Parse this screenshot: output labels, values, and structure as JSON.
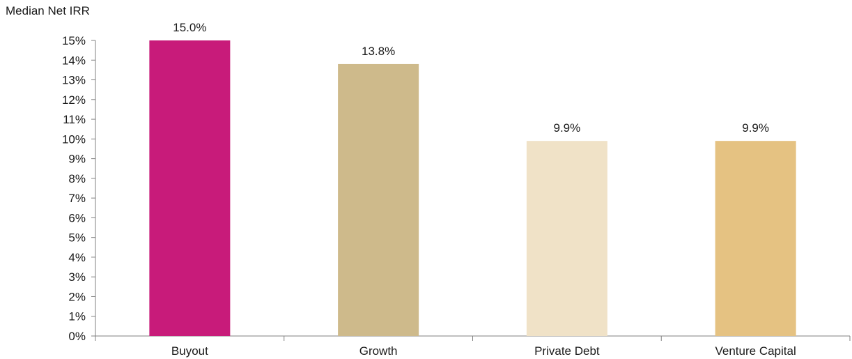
{
  "chart_data": {
    "type": "bar",
    "title": "",
    "xlabel": "",
    "ylabel": "Median Net IRR",
    "categories": [
      "Buyout",
      "Growth",
      "Private Debt",
      "Venture Capital"
    ],
    "values": [
      15.0,
      13.8,
      9.9,
      9.9
    ],
    "value_labels": [
      "15.0%",
      "13.8%",
      "9.9%",
      "9.9%"
    ],
    "bar_colors": [
      "#c81b7a",
      "#ceba8b",
      "#f0e2c7",
      "#e5c282"
    ],
    "ylim": [
      0,
      15
    ],
    "yticks": [
      0,
      1,
      2,
      3,
      4,
      5,
      6,
      7,
      8,
      9,
      10,
      11,
      12,
      13,
      14,
      15
    ],
    "ytick_labels": [
      "0%",
      "1%",
      "2%",
      "3%",
      "4%",
      "5%",
      "6%",
      "7%",
      "8%",
      "9%",
      "10%",
      "11%",
      "12%",
      "13%",
      "14%",
      "15%"
    ],
    "grid": false,
    "legend": "none",
    "axis_color": "#808080"
  }
}
